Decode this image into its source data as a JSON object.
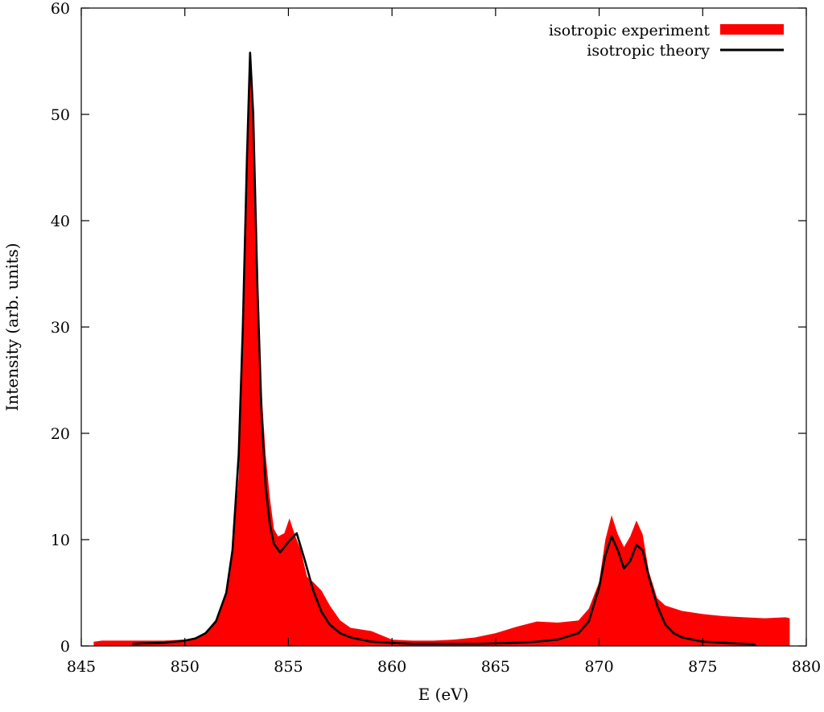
{
  "chart_data": {
    "type": "area",
    "title": "",
    "xlabel": "E (eV)",
    "ylabel": "Intensity (arb. units)",
    "xlim": [
      845,
      880
    ],
    "ylim": [
      0,
      60
    ],
    "x_ticks": [
      "845",
      "850",
      "855",
      "860",
      "865",
      "870",
      "875",
      "880"
    ],
    "y_ticks": [
      "0",
      "10",
      "20",
      "30",
      "40",
      "50",
      "60"
    ],
    "grid": false,
    "legend_position": "top-right",
    "series": [
      {
        "name": "isotropic experiment",
        "style": "filled",
        "color": "#ff0000",
        "x": [
          845.6,
          846.0,
          847.0,
          848.0,
          849.0,
          850.0,
          850.5,
          851.0,
          851.5,
          852.0,
          852.3,
          852.6,
          852.8,
          853.0,
          853.15,
          853.3,
          853.5,
          853.7,
          853.9,
          854.1,
          854.3,
          854.5,
          854.8,
          855.05,
          855.3,
          855.6,
          855.9,
          856.2,
          856.6,
          857.0,
          857.5,
          858.0,
          859.0,
          860.0,
          861.0,
          862.0,
          863.0,
          864.0,
          865.0,
          866.0,
          867.0,
          868.0,
          869.0,
          869.5,
          870.0,
          870.3,
          870.6,
          870.9,
          871.2,
          871.5,
          871.8,
          872.1,
          872.4,
          872.8,
          873.2,
          874.0,
          875.0,
          876.0,
          877.0,
          878.0,
          879.0,
          879.2
        ],
        "y": [
          0.4,
          0.5,
          0.5,
          0.5,
          0.5,
          0.6,
          0.8,
          1.3,
          2.5,
          5.0,
          9.0,
          16.0,
          28.0,
          45.0,
          56.0,
          50.0,
          35.0,
          24.0,
          18.0,
          14.0,
          11.0,
          10.3,
          10.6,
          12.0,
          10.5,
          9.0,
          6.5,
          6.0,
          5.2,
          3.8,
          2.4,
          1.7,
          1.4,
          0.6,
          0.5,
          0.5,
          0.6,
          0.8,
          1.2,
          1.8,
          2.3,
          2.2,
          2.4,
          3.5,
          6.0,
          10.0,
          12.3,
          10.5,
          9.3,
          10.3,
          11.8,
          10.5,
          7.0,
          4.5,
          3.8,
          3.3,
          3.0,
          2.8,
          2.7,
          2.6,
          2.7,
          2.6
        ]
      },
      {
        "name": "isotropic theory",
        "style": "line",
        "color": "#000000",
        "x": [
          847.5,
          848.0,
          849.0,
          850.0,
          850.5,
          851.0,
          851.5,
          852.0,
          852.3,
          852.6,
          852.8,
          853.0,
          853.15,
          853.3,
          853.5,
          853.7,
          853.9,
          854.1,
          854.3,
          854.6,
          855.0,
          855.4,
          855.8,
          856.2,
          856.6,
          857.0,
          857.5,
          858.0,
          859.0,
          860.0,
          861.0,
          862.0,
          864.0,
          866.0,
          867.0,
          868.0,
          869.0,
          869.5,
          870.0,
          870.3,
          870.6,
          870.9,
          871.2,
          871.5,
          871.8,
          872.1,
          872.4,
          872.8,
          873.2,
          873.6,
          874.0,
          875.0,
          876.0,
          877.0,
          877.5
        ],
        "y": [
          0.2,
          0.25,
          0.3,
          0.5,
          0.7,
          1.2,
          2.3,
          5.0,
          9.0,
          18.0,
          30.0,
          46.0,
          55.8,
          50.0,
          34.0,
          22.0,
          15.0,
          11.5,
          9.6,
          8.8,
          9.8,
          10.6,
          8.0,
          5.2,
          3.2,
          2.0,
          1.2,
          0.8,
          0.4,
          0.3,
          0.2,
          0.2,
          0.2,
          0.3,
          0.4,
          0.6,
          1.2,
          2.3,
          5.5,
          8.5,
          10.3,
          9.0,
          7.3,
          8.0,
          9.5,
          9.0,
          6.5,
          3.8,
          2.0,
          1.2,
          0.8,
          0.4,
          0.3,
          0.2,
          0.15
        ]
      }
    ]
  }
}
